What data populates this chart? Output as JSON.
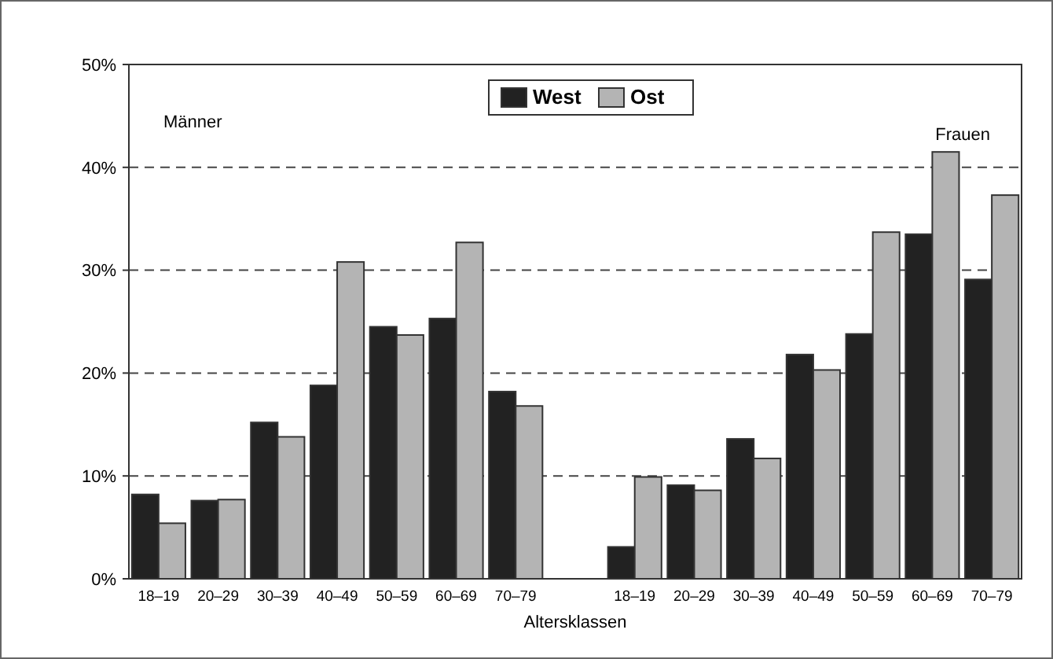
{
  "chart_data": {
    "type": "bar",
    "xlabel": "Altersklassen",
    "categories": [
      "18–19",
      "20–29",
      "30–39",
      "40–49",
      "50–59",
      "60–69",
      "70–79",
      null,
      "18–19",
      "20–29",
      "30–39",
      "40–49",
      "50–59",
      "60–69",
      "70–79"
    ],
    "series": [
      {
        "name": "West",
        "color": "#222222",
        "values": [
          8.2,
          7.6,
          15.2,
          18.8,
          24.5,
          25.3,
          18.2,
          null,
          3.1,
          9.1,
          13.6,
          21.8,
          23.8,
          33.5,
          29.1
        ]
      },
      {
        "name": "Ost",
        "color": "#b4b4b4",
        "values": [
          5.4,
          7.7,
          13.8,
          30.8,
          23.7,
          32.7,
          16.8,
          null,
          9.9,
          8.6,
          11.7,
          20.3,
          33.7,
          41.5,
          37.3
        ]
      }
    ],
    "ylim": [
      0,
      50
    ],
    "yticks": [
      {
        "value": 0,
        "label": "0%"
      },
      {
        "value": 10,
        "label": "10%"
      },
      {
        "value": 20,
        "label": "20%"
      },
      {
        "value": 30,
        "label": "30%"
      },
      {
        "value": 40,
        "label": "40%"
      },
      {
        "value": 50,
        "label": "50%"
      }
    ],
    "grid": "y",
    "legend": "top",
    "annotations": [
      "Männer",
      "Frauen"
    ]
  }
}
